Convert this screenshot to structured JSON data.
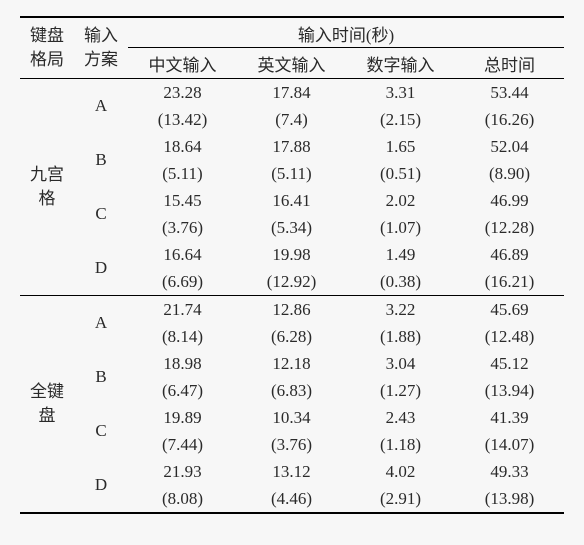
{
  "table": {
    "header": {
      "layout_l1": "键盘",
      "layout_l2": "格局",
      "scheme_l1": "输入",
      "scheme_l2": "方案",
      "time_group": "输入时间(秒)",
      "cn": "中文输入",
      "en": "英文输入",
      "num": "数字输入",
      "total": "总时间"
    },
    "layouts": {
      "nine_l1": "九宫",
      "nine_l2": "格",
      "full_l1": "全键",
      "full_l2": "盘"
    },
    "schemes": {
      "a": "A",
      "b": "B",
      "c": "C",
      "d": "D"
    },
    "groups": [
      {
        "rows": [
          {
            "cn": "23.28",
            "cn_sd": "(13.42)",
            "en": "17.84",
            "en_sd": "(7.4)",
            "num": "3.31",
            "num_sd": "(2.15)",
            "total": "53.44",
            "total_sd": "(16.26)"
          },
          {
            "cn": "18.64",
            "cn_sd": "(5.11)",
            "en": "17.88",
            "en_sd": "(5.11)",
            "num": "1.65",
            "num_sd": "(0.51)",
            "total": "52.04",
            "total_sd": "(8.90)"
          },
          {
            "cn": "15.45",
            "cn_sd": "(3.76)",
            "en": "16.41",
            "en_sd": "(5.34)",
            "num": "2.02",
            "num_sd": "(1.07)",
            "total": "46.99",
            "total_sd": "(12.28)"
          },
          {
            "cn": "16.64",
            "cn_sd": "(6.69)",
            "en": "19.98",
            "en_sd": "(12.92)",
            "num": "1.49",
            "num_sd": "(0.38)",
            "total": "46.89",
            "total_sd": "(16.21)"
          }
        ]
      },
      {
        "rows": [
          {
            "cn": "21.74",
            "cn_sd": "(8.14)",
            "en": "12.86",
            "en_sd": "(6.28)",
            "num": "3.22",
            "num_sd": "(1.88)",
            "total": "45.69",
            "total_sd": "(12.48)"
          },
          {
            "cn": "18.98",
            "cn_sd": "(6.47)",
            "en": "12.18",
            "en_sd": "(6.83)",
            "num": "3.04",
            "num_sd": "(1.27)",
            "total": "45.12",
            "total_sd": "(13.94)"
          },
          {
            "cn": "19.89",
            "cn_sd": "(7.44)",
            "en": "10.34",
            "en_sd": "(3.76)",
            "num": "2.43",
            "num_sd": "(1.18)",
            "total": "41.39",
            "total_sd": "(14.07)"
          },
          {
            "cn": "21.93",
            "cn_sd": "(8.08)",
            "en": "13.12",
            "en_sd": "(4.46)",
            "num": "4.02",
            "num_sd": "(2.91)",
            "total": "49.33",
            "total_sd": "(13.98)"
          }
        ]
      }
    ]
  }
}
